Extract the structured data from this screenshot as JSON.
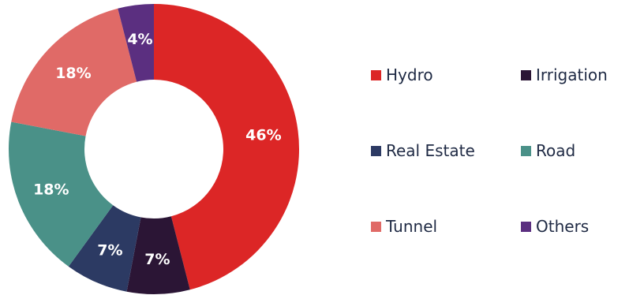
{
  "chart_data": {
    "type": "pie",
    "donut": true,
    "categories": [
      "Hydro",
      "Irrigation",
      "Real Estate",
      "Road",
      "Tunnel",
      "Others"
    ],
    "values": [
      46,
      7,
      7,
      18,
      18,
      4
    ],
    "labels": [
      "46%",
      "7%",
      "7%",
      "18%",
      "18%",
      "4%"
    ],
    "colors": [
      "#dc2626",
      "#2b1535",
      "#2c3a63",
      "#4a9188",
      "#e06a67",
      "#5b2f80"
    ],
    "start_angle_deg": 0,
    "direction": "clockwise",
    "legend": {
      "position": "right",
      "items": [
        {
          "label": "Hydro",
          "color": "#dc2626"
        },
        {
          "label": "Irrigation",
          "color": "#2b1535"
        },
        {
          "label": "Real Estate",
          "color": "#2c3a63"
        },
        {
          "label": "Road",
          "color": "#4a9188"
        },
        {
          "label": "Tunnel",
          "color": "#e06a67"
        },
        {
          "label": "Others",
          "color": "#5b2f80"
        }
      ]
    },
    "title": "",
    "xlabel": "",
    "ylabel": ""
  }
}
